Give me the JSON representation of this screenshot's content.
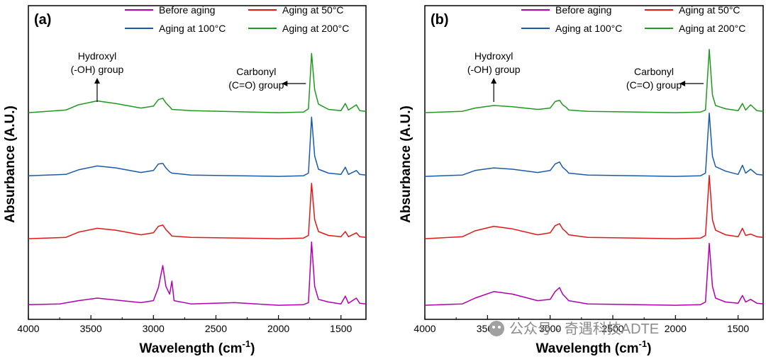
{
  "watermark": "公众号 · 奇遇科技ADTE",
  "series_colors": {
    "Before aging": "#b000b0",
    "Aging at 50°C": "#e01818",
    "Aging at 100°C": "#1a5aaa",
    "Aging at 200°C": "#1e9a1e"
  },
  "chart_data": [
    {
      "type": "line",
      "panel_label": "(a)",
      "xlabel": "Wavelength (cm",
      "xlabel_sup": "-1",
      "xlabel_tail": ")",
      "ylabel": "Absurbance (A.U.)",
      "xlim": [
        4000,
        1300
      ],
      "x_reversed": true,
      "x_ticks": [
        "4000",
        "3500",
        "3000",
        "2500",
        "2000",
        "1500"
      ],
      "grid": false,
      "legend_position": "top",
      "legend": [
        "Before aging",
        "Aging at 50°C",
        "Aging at 100°C",
        "Aging at 200°C"
      ],
      "annotations": [
        {
          "lines": [
            "Hydroxyl",
            "(-OH) group"
          ],
          "arrow": "up",
          "at_x": 3450
        },
        {
          "lines": [
            "Carbonyl",
            "(C=O) group"
          ],
          "arrow": "right-to-left",
          "at_x": 1735
        }
      ],
      "series": [
        {
          "name": "Before aging",
          "offset": 0,
          "points": [
            [
              4000,
              0.02
            ],
            [
              3750,
              0.03
            ],
            [
              3600,
              0.08
            ],
            [
              3450,
              0.12
            ],
            [
              3300,
              0.09
            ],
            [
              3100,
              0.05
            ],
            [
              3000,
              0.08
            ],
            [
              2960,
              0.28
            ],
            [
              2925,
              0.62
            ],
            [
              2900,
              0.3
            ],
            [
              2870,
              0.18
            ],
            [
              2852,
              0.38
            ],
            [
              2835,
              0.08
            ],
            [
              2700,
              0.03
            ],
            [
              2350,
              0.05
            ],
            [
              2000,
              0.01
            ],
            [
              1800,
              0.02
            ],
            [
              1760,
              0.05
            ],
            [
              1735,
              0.98
            ],
            [
              1710,
              0.3
            ],
            [
              1680,
              0.1
            ],
            [
              1600,
              0.06
            ],
            [
              1500,
              0.03
            ],
            [
              1465,
              0.15
            ],
            [
              1440,
              0.04
            ],
            [
              1377,
              0.12
            ],
            [
              1350,
              0.04
            ],
            [
              1300,
              0.03
            ]
          ]
        },
        {
          "name": "Aging at 50°C",
          "offset": 0,
          "points": [
            [
              4000,
              0.01
            ],
            [
              3700,
              0.03
            ],
            [
              3600,
              0.11
            ],
            [
              3450,
              0.17
            ],
            [
              3300,
              0.14
            ],
            [
              3100,
              0.07
            ],
            [
              3000,
              0.1
            ],
            [
              2960,
              0.2
            ],
            [
              2925,
              0.22
            ],
            [
              2900,
              0.15
            ],
            [
              2870,
              0.09
            ],
            [
              2852,
              0.05
            ],
            [
              2700,
              0.03
            ],
            [
              2000,
              0.01
            ],
            [
              1800,
              0.02
            ],
            [
              1760,
              0.06
            ],
            [
              1735,
              0.86
            ],
            [
              1710,
              0.3
            ],
            [
              1680,
              0.12
            ],
            [
              1600,
              0.06
            ],
            [
              1500,
              0.04
            ],
            [
              1465,
              0.12
            ],
            [
              1440,
              0.04
            ],
            [
              1377,
              0.1
            ],
            [
              1350,
              0.04
            ],
            [
              1300,
              0.03
            ]
          ]
        },
        {
          "name": "Aging at 100°C",
          "offset": 0,
          "points": [
            [
              4000,
              0.02
            ],
            [
              3700,
              0.04
            ],
            [
              3600,
              0.11
            ],
            [
              3450,
              0.17
            ],
            [
              3300,
              0.14
            ],
            [
              3100,
              0.07
            ],
            [
              3000,
              0.1
            ],
            [
              2960,
              0.2
            ],
            [
              2925,
              0.21
            ],
            [
              2900,
              0.14
            ],
            [
              2870,
              0.08
            ],
            [
              2852,
              0.06
            ],
            [
              2700,
              0.03
            ],
            [
              2000,
              0.01
            ],
            [
              1800,
              0.02
            ],
            [
              1760,
              0.06
            ],
            [
              1735,
              0.92
            ],
            [
              1710,
              0.32
            ],
            [
              1680,
              0.12
            ],
            [
              1600,
              0.06
            ],
            [
              1500,
              0.04
            ],
            [
              1465,
              0.15
            ],
            [
              1440,
              0.04
            ],
            [
              1377,
              0.1
            ],
            [
              1350,
              0.04
            ],
            [
              1300,
              0.03
            ]
          ]
        },
        {
          "name": "Aging at 200°C",
          "offset": 0,
          "points": [
            [
              4000,
              0.01
            ],
            [
              3700,
              0.05
            ],
            [
              3600,
              0.13
            ],
            [
              3450,
              0.19
            ],
            [
              3300,
              0.15
            ],
            [
              3100,
              0.08
            ],
            [
              3000,
              0.11
            ],
            [
              2960,
              0.21
            ],
            [
              2925,
              0.23
            ],
            [
              2900,
              0.16
            ],
            [
              2870,
              0.1
            ],
            [
              2852,
              0.06
            ],
            [
              2700,
              0.04
            ],
            [
              2000,
              0.01
            ],
            [
              1800,
              0.02
            ],
            [
              1760,
              0.07
            ],
            [
              1735,
              0.92
            ],
            [
              1710,
              0.36
            ],
            [
              1680,
              0.14
            ],
            [
              1600,
              0.06
            ],
            [
              1500,
              0.04
            ],
            [
              1465,
              0.15
            ],
            [
              1440,
              0.05
            ],
            [
              1377,
              0.13
            ],
            [
              1350,
              0.04
            ],
            [
              1300,
              0.03
            ]
          ]
        }
      ]
    },
    {
      "type": "line",
      "panel_label": "(b)",
      "xlabel": "Wavelength (cm",
      "xlabel_sup": "-1",
      "xlabel_tail": ")",
      "ylabel": "Absurbance (A.U.)",
      "xlim": [
        4000,
        1300
      ],
      "x_reversed": true,
      "x_ticks": [
        "4000",
        "3500",
        "3000",
        "2500",
        "2000",
        "1500"
      ],
      "grid": false,
      "legend_position": "top",
      "legend": [
        "Before aging",
        "Aging at 50°C",
        "Aging at 100°C",
        "Aging at 200°C"
      ],
      "annotations": [
        {
          "lines": [
            "Hydroxyl",
            "(-OH) group"
          ],
          "arrow": "up",
          "at_x": 3450
        },
        {
          "lines": [
            "Carbonyl",
            "(C=O) group"
          ],
          "arrow": "right-to-left",
          "at_x": 1730
        }
      ],
      "series": [
        {
          "name": "Before aging",
          "points": [
            [
              4000,
              0.01
            ],
            [
              3700,
              0.03
            ],
            [
              3600,
              0.12
            ],
            [
              3450,
              0.22
            ],
            [
              3300,
              0.18
            ],
            [
              3100,
              0.08
            ],
            [
              3000,
              0.1
            ],
            [
              2960,
              0.22
            ],
            [
              2925,
              0.28
            ],
            [
              2900,
              0.18
            ],
            [
              2870,
              0.12
            ],
            [
              2852,
              0.08
            ],
            [
              2700,
              0.03
            ],
            [
              2000,
              0.01
            ],
            [
              1800,
              0.02
            ],
            [
              1760,
              0.06
            ],
            [
              1730,
              0.96
            ],
            [
              1705,
              0.3
            ],
            [
              1680,
              0.12
            ],
            [
              1600,
              0.06
            ],
            [
              1500,
              0.04
            ],
            [
              1465,
              0.16
            ],
            [
              1440,
              0.06
            ],
            [
              1400,
              0.1
            ],
            [
              1350,
              0.04
            ],
            [
              1300,
              0.03
            ]
          ]
        },
        {
          "name": "Aging at 50°C",
          "points": [
            [
              4000,
              0.01
            ],
            [
              3700,
              0.04
            ],
            [
              3600,
              0.13
            ],
            [
              3450,
              0.2
            ],
            [
              3300,
              0.16
            ],
            [
              3100,
              0.07
            ],
            [
              3000,
              0.1
            ],
            [
              2960,
              0.21
            ],
            [
              2925,
              0.24
            ],
            [
              2900,
              0.16
            ],
            [
              2870,
              0.11
            ],
            [
              2852,
              0.07
            ],
            [
              2700,
              0.03
            ],
            [
              2000,
              0.01
            ],
            [
              1800,
              0.02
            ],
            [
              1760,
              0.06
            ],
            [
              1730,
              0.98
            ],
            [
              1705,
              0.3
            ],
            [
              1680,
              0.14
            ],
            [
              1600,
              0.07
            ],
            [
              1500,
              0.04
            ],
            [
              1465,
              0.17
            ],
            [
              1440,
              0.06
            ],
            [
              1400,
              0.08
            ],
            [
              1350,
              0.04
            ],
            [
              1300,
              0.03
            ]
          ]
        },
        {
          "name": "Aging at 100°C",
          "points": [
            [
              4000,
              0.01
            ],
            [
              3700,
              0.03
            ],
            [
              3600,
              0.1
            ],
            [
              3450,
              0.14
            ],
            [
              3300,
              0.12
            ],
            [
              3100,
              0.07
            ],
            [
              3000,
              0.1
            ],
            [
              2960,
              0.2
            ],
            [
              2925,
              0.23
            ],
            [
              2900,
              0.15
            ],
            [
              2870,
              0.1
            ],
            [
              2852,
              0.06
            ],
            [
              2700,
              0.03
            ],
            [
              2000,
              0.01
            ],
            [
              1800,
              0.02
            ],
            [
              1760,
              0.06
            ],
            [
              1730,
              0.98
            ],
            [
              1705,
              0.32
            ],
            [
              1680,
              0.16
            ],
            [
              1600,
              0.09
            ],
            [
              1500,
              0.04
            ],
            [
              1465,
              0.18
            ],
            [
              1440,
              0.06
            ],
            [
              1400,
              0.12
            ],
            [
              1350,
              0.04
            ],
            [
              1300,
              0.03
            ]
          ]
        },
        {
          "name": "Aging at 200°C",
          "points": [
            [
              4000,
              0.01
            ],
            [
              3700,
              0.03
            ],
            [
              3600,
              0.08
            ],
            [
              3450,
              0.12
            ],
            [
              3300,
              0.1
            ],
            [
              3100,
              0.06
            ],
            [
              3000,
              0.08
            ],
            [
              2960,
              0.18
            ],
            [
              2925,
              0.2
            ],
            [
              2900,
              0.13
            ],
            [
              2870,
              0.09
            ],
            [
              2852,
              0.05
            ],
            [
              2700,
              0.03
            ],
            [
              2000,
              0.01
            ],
            [
              1800,
              0.02
            ],
            [
              1760,
              0.05
            ],
            [
              1730,
              0.98
            ],
            [
              1705,
              0.28
            ],
            [
              1680,
              0.12
            ],
            [
              1600,
              0.07
            ],
            [
              1500,
              0.04
            ],
            [
              1465,
              0.15
            ],
            [
              1440,
              0.05
            ],
            [
              1400,
              0.13
            ],
            [
              1350,
              0.04
            ],
            [
              1300,
              0.03
            ]
          ]
        }
      ]
    }
  ]
}
